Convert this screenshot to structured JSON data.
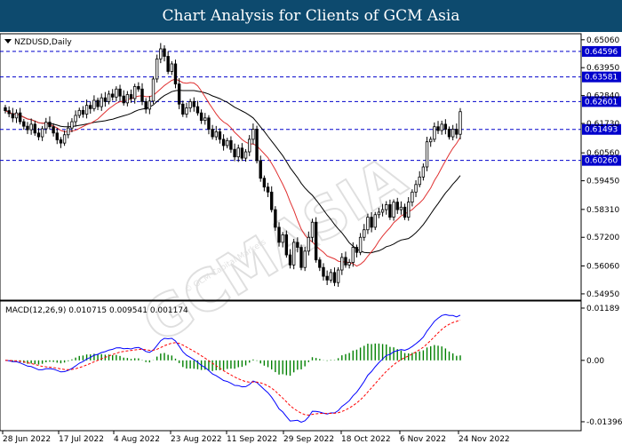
{
  "header": {
    "title": "Chart Analysis for Clients of GCM Asia"
  },
  "watermark": {
    "text": "GCMASIA",
    "tagline": "© GCM Capital Markets"
  },
  "colors": {
    "header_bg": "#0d4a6e",
    "level_line": "#0000cc",
    "level_label_bg": "#0000cc",
    "bull_candle": "#ffffff",
    "bear_candle": "#000000",
    "ma_fast": "#e03030",
    "ma_slow": "#000000",
    "macd_hist": "#008000",
    "macd_line": "#0000ff",
    "signal_line": "#ff0000"
  },
  "chart_data": [
    {
      "type": "candlestick",
      "title": "NZDUSD,Daily",
      "x_ticks": [
        "28 Jun 2022",
        "17 Jul 2022",
        "4 Aug 2022",
        "23 Aug 2022",
        "11 Sep 2022",
        "29 Sep 2022",
        "18 Oct 2022",
        "6 Nov 2022",
        "24 Nov 2022"
      ],
      "y_ticks": [
        0.6506,
        0.6395,
        0.6284,
        0.6173,
        0.6056,
        0.5945,
        0.5831,
        0.572,
        0.5606,
        0.5495
      ],
      "ylim": [
        0.547,
        0.653
      ],
      "levels": [
        {
          "value": 0.64596,
          "label": "0.64596"
        },
        {
          "value": 0.63581,
          "label": "0.63581"
        },
        {
          "value": 0.62601,
          "label": "0.62601"
        },
        {
          "value": 0.61493,
          "label": "0.61493"
        },
        {
          "value": 0.6026,
          "label": "0.60260"
        }
      ],
      "closes": [
        0.6224,
        0.6212,
        0.6195,
        0.6215,
        0.618,
        0.6162,
        0.6148,
        0.617,
        0.6135,
        0.612,
        0.6152,
        0.6178,
        0.616,
        0.6135,
        0.6108,
        0.6095,
        0.6128,
        0.6155,
        0.618,
        0.6205,
        0.6225,
        0.621,
        0.6245,
        0.6232,
        0.6265,
        0.624,
        0.6275,
        0.626,
        0.629,
        0.6278,
        0.631,
        0.6282,
        0.6255,
        0.6288,
        0.6272,
        0.632,
        0.631,
        0.626,
        0.623,
        0.6262,
        0.635,
        0.643,
        0.647,
        0.644,
        0.638,
        0.641,
        0.633,
        0.625,
        0.621,
        0.6235,
        0.626,
        0.624,
        0.6215,
        0.6185,
        0.6195,
        0.615,
        0.612,
        0.614,
        0.611,
        0.6085,
        0.6105,
        0.607,
        0.604,
        0.6075,
        0.6035,
        0.606,
        0.611,
        0.615,
        0.6025,
        0.5955,
        0.592,
        0.59,
        0.583,
        0.576,
        0.57,
        0.573,
        0.565,
        0.561,
        0.57,
        0.568,
        0.56,
        0.5665,
        0.572,
        0.578,
        0.563,
        0.56,
        0.5565,
        0.555,
        0.558,
        0.554,
        0.559,
        0.564,
        0.561,
        0.562,
        0.568,
        0.566,
        0.572,
        0.575,
        0.58,
        0.576,
        0.581,
        0.582,
        0.583,
        0.585,
        0.58,
        0.586,
        0.583,
        0.584,
        0.58,
        0.586,
        0.59,
        0.593,
        0.596,
        0.6,
        0.61,
        0.611,
        0.616,
        0.6145,
        0.617,
        0.615,
        0.612,
        0.615,
        0.613,
        0.622
      ],
      "ma_fast_last": 0.6025,
      "ma_slow_last": 0.595
    },
    {
      "type": "macd",
      "title": "MACD(12,26,9) 0.010715 0.009541 0.001174",
      "y_ticks": [
        0.01189,
        0.0,
        -0.013969
      ],
      "ylim": [
        -0.016,
        0.0135
      ],
      "x_ticks": [
        "28 Jun 2022",
        "17 Jul 2022",
        "4 Aug 2022",
        "23 Aug 2022",
        "11 Sep 2022",
        "29 Sep 2022",
        "18 Oct 2022",
        "6 Nov 2022",
        "24 Nov 2022"
      ]
    }
  ]
}
